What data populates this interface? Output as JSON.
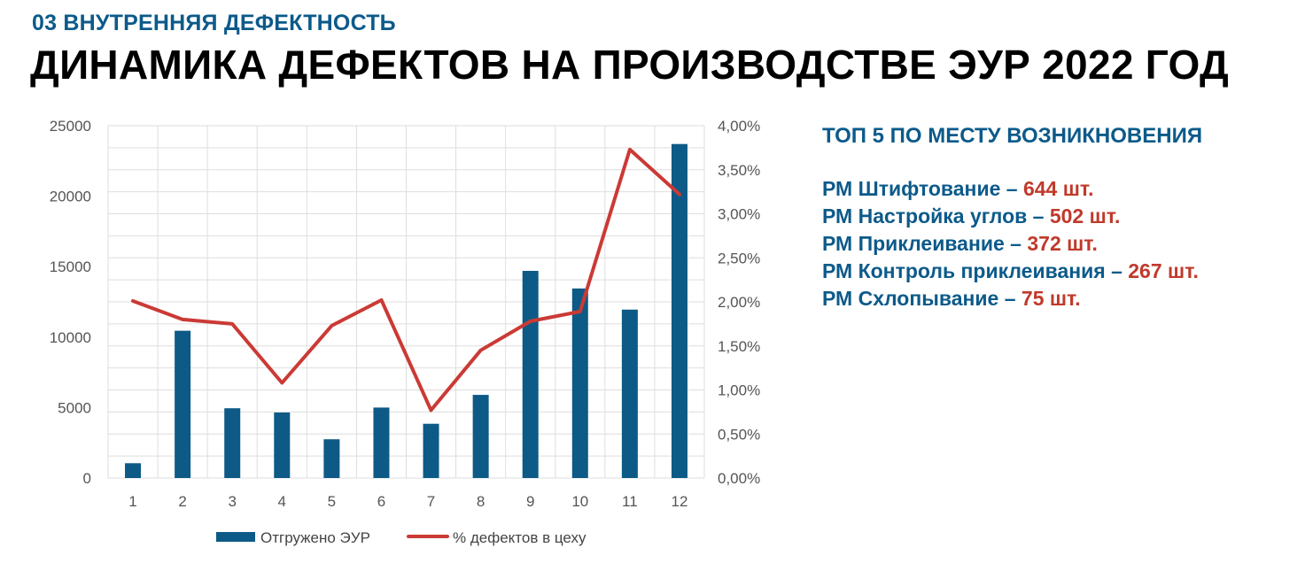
{
  "header": {
    "section": "03 ВНУТРЕННЯЯ ДЕФЕКТНОСТЬ",
    "title": "ДИНАМИКА ДЕФЕКТОВ НА ПРОИЗВОДСТВЕ ЭУР 2022 ГОД"
  },
  "chart_data": {
    "type": "bar+line",
    "categories": [
      "1",
      "2",
      "3",
      "4",
      "5",
      "6",
      "7",
      "8",
      "9",
      "10",
      "11",
      "12"
    ],
    "series": [
      {
        "name": "Отгружено ЭУР",
        "type": "bar",
        "axis": "left",
        "color": "#0d5a86",
        "values": [
          1050,
          10450,
          4950,
          4650,
          2750,
          5000,
          3850,
          5900,
          14700,
          13450,
          11950,
          23700
        ]
      },
      {
        "name": "% дефектов в цеху",
        "type": "line",
        "axis": "right",
        "color": "#cb3a35",
        "values": [
          2.01,
          1.8,
          1.75,
          1.08,
          1.73,
          2.02,
          0.77,
          1.45,
          1.78,
          1.89,
          3.73,
          3.22
        ]
      }
    ],
    "y_left": {
      "lim": [
        0,
        25000
      ],
      "ticks": [
        0,
        5000,
        10000,
        15000,
        20000,
        25000
      ],
      "tick_labels": [
        "0",
        "5000",
        "10000",
        "15000",
        "20000",
        "25000"
      ]
    },
    "y_right": {
      "lim": [
        0,
        4
      ],
      "ticks": [
        0,
        0.5,
        1,
        1.5,
        2,
        2.5,
        3,
        3.5,
        4
      ],
      "tick_labels": [
        "0,00%",
        "0,50%",
        "1,00%",
        "1,50%",
        "2,00%",
        "2,50%",
        "3,00%",
        "3,50%",
        "4,00%"
      ]
    },
    "grid": true,
    "legend_position": "bottom"
  },
  "top5": {
    "heading": "ТОП 5 ПО МЕСТУ ВОЗНИКНОВЕНИЯ",
    "items": [
      {
        "label": "РМ Штифтование – ",
        "count": "644 шт."
      },
      {
        "label": "РМ Настройка углов – ",
        "count": "502 шт."
      },
      {
        "label": "РМ Приклеивание – ",
        "count": "372 шт."
      },
      {
        "label": "РМ Контроль приклеивания – ",
        "count": "267 шт."
      },
      {
        "label": "РМ Схлопывание – ",
        "count": "75 шт."
      }
    ]
  }
}
